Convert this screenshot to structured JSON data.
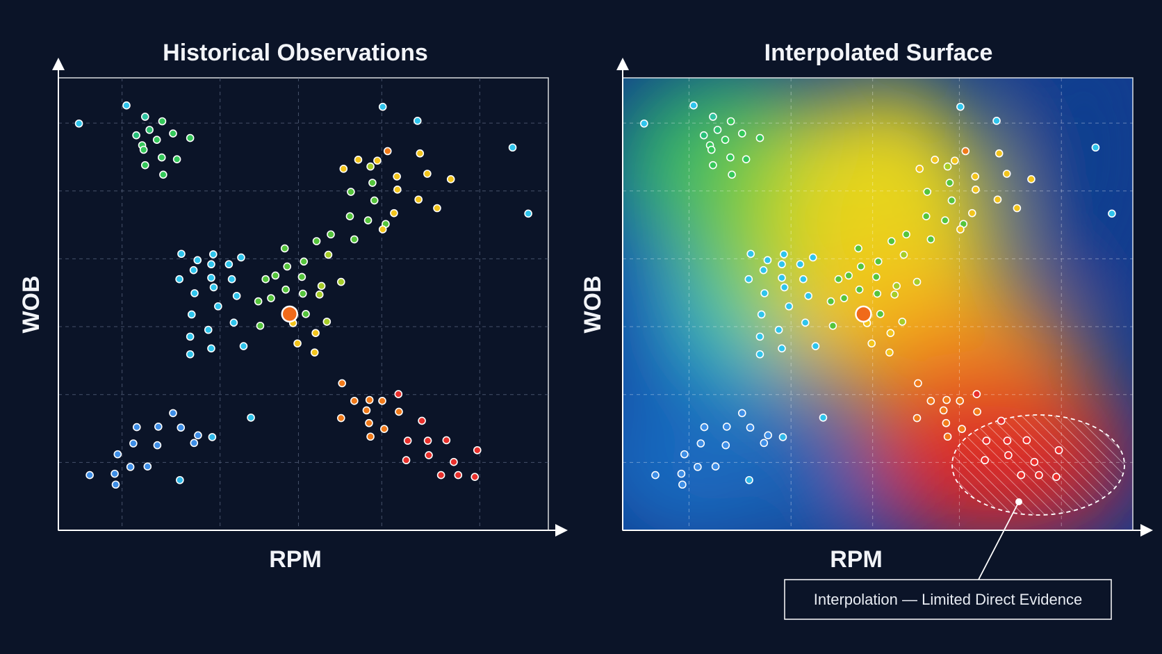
{
  "chart_data": [
    {
      "type": "scatter",
      "title": "Historical Observations",
      "xlabel": "RPM",
      "ylabel": "WOB",
      "xlim": [
        0,
        100
      ],
      "ylim": [
        0,
        100
      ],
      "grid": true,
      "highlight": {
        "x": 47.2,
        "y": 47.8,
        "color": "#f06a1a"
      },
      "points": [
        {
          "x": 4.2,
          "y": 89.9,
          "color": "#2fc4ec"
        },
        {
          "x": 13.9,
          "y": 93.9,
          "color": "#2fc4ec"
        },
        {
          "x": 17.7,
          "y": 91.4,
          "color": "#2fc3a0"
        },
        {
          "x": 15.9,
          "y": 87.3,
          "color": "#27c07a"
        },
        {
          "x": 18.6,
          "y": 88.5,
          "color": "#2fc070"
        },
        {
          "x": 21.2,
          "y": 90.4,
          "color": "#35c85a"
        },
        {
          "x": 17.1,
          "y": 85.1,
          "color": "#35c85a"
        },
        {
          "x": 20.1,
          "y": 86.3,
          "color": "#35c85a"
        },
        {
          "x": 23.4,
          "y": 87.7,
          "color": "#35c85a"
        },
        {
          "x": 26.9,
          "y": 86.7,
          "color": "#35c85a"
        },
        {
          "x": 17.4,
          "y": 84.1,
          "color": "#35c85a"
        },
        {
          "x": 21.1,
          "y": 82.4,
          "color": "#35c85a"
        },
        {
          "x": 24.2,
          "y": 82.0,
          "color": "#35c85a"
        },
        {
          "x": 17.7,
          "y": 80.7,
          "color": "#35c85a"
        },
        {
          "x": 21.4,
          "y": 78.6,
          "color": "#35c85a"
        },
        {
          "x": 66.2,
          "y": 93.6,
          "color": "#2fc4ec"
        },
        {
          "x": 73.3,
          "y": 90.5,
          "color": "#2fc4ec"
        },
        {
          "x": 92.7,
          "y": 84.6,
          "color": "#2fc4ec"
        },
        {
          "x": 95.9,
          "y": 70.0,
          "color": "#2fc4ec"
        },
        {
          "x": 67.2,
          "y": 83.8,
          "color": "#f07a1a"
        },
        {
          "x": 73.8,
          "y": 83.3,
          "color": "#f2c41c"
        },
        {
          "x": 65.1,
          "y": 81.7,
          "color": "#f2c41c"
        },
        {
          "x": 61.2,
          "y": 81.9,
          "color": "#f2c41c"
        },
        {
          "x": 58.2,
          "y": 79.9,
          "color": "#f2c41c"
        },
        {
          "x": 63.7,
          "y": 80.4,
          "color": "#a6cc28"
        },
        {
          "x": 75.3,
          "y": 78.8,
          "color": "#f2c41c"
        },
        {
          "x": 80.1,
          "y": 77.6,
          "color": "#f2c41c"
        },
        {
          "x": 69.1,
          "y": 78.2,
          "color": "#f2c41c"
        },
        {
          "x": 64.1,
          "y": 76.8,
          "color": "#55c43c"
        },
        {
          "x": 59.7,
          "y": 74.8,
          "color": "#55c43c"
        },
        {
          "x": 73.5,
          "y": 73.1,
          "color": "#f2c41c"
        },
        {
          "x": 69.2,
          "y": 75.3,
          "color": "#f2c41c"
        },
        {
          "x": 77.3,
          "y": 71.2,
          "color": "#f2c41c"
        },
        {
          "x": 64.5,
          "y": 72.9,
          "color": "#55c43c"
        },
        {
          "x": 68.5,
          "y": 70.1,
          "color": "#f2c41c"
        },
        {
          "x": 59.5,
          "y": 69.4,
          "color": "#55c43c"
        },
        {
          "x": 63.2,
          "y": 68.5,
          "color": "#55c43c"
        },
        {
          "x": 66.8,
          "y": 67.7,
          "color": "#55c43c"
        },
        {
          "x": 55.6,
          "y": 65.4,
          "color": "#55c43c"
        },
        {
          "x": 60.4,
          "y": 64.3,
          "color": "#55c43c"
        },
        {
          "x": 66.2,
          "y": 66.5,
          "color": "#f2c41c"
        },
        {
          "x": 52.7,
          "y": 63.9,
          "color": "#55c43c"
        },
        {
          "x": 46.2,
          "y": 62.3,
          "color": "#55c43c"
        },
        {
          "x": 55.1,
          "y": 60.9,
          "color": "#a6cc28"
        },
        {
          "x": 50.1,
          "y": 59.4,
          "color": "#55c43c"
        },
        {
          "x": 42.3,
          "y": 55.5,
          "color": "#55c43c"
        },
        {
          "x": 44.3,
          "y": 56.3,
          "color": "#55c43c"
        },
        {
          "x": 49.7,
          "y": 56.0,
          "color": "#55c43c"
        },
        {
          "x": 53.7,
          "y": 54.0,
          "color": "#a6cc28"
        },
        {
          "x": 57.7,
          "y": 54.9,
          "color": "#a6cc28"
        },
        {
          "x": 46.7,
          "y": 58.3,
          "color": "#55c43c"
        },
        {
          "x": 43.4,
          "y": 51.3,
          "color": "#55c43c"
        },
        {
          "x": 49.9,
          "y": 52.3,
          "color": "#55c43c"
        },
        {
          "x": 53.3,
          "y": 52.1,
          "color": "#a6cc28"
        },
        {
          "x": 46.4,
          "y": 53.2,
          "color": "#55c43c"
        },
        {
          "x": 40.8,
          "y": 50.6,
          "color": "#55c43c"
        },
        {
          "x": 47.9,
          "y": 45.8,
          "color": "#f2c41c"
        },
        {
          "x": 50.5,
          "y": 47.8,
          "color": "#55c43c"
        },
        {
          "x": 54.8,
          "y": 46.1,
          "color": "#a6cc28"
        },
        {
          "x": 41.2,
          "y": 45.2,
          "color": "#55c43c"
        },
        {
          "x": 48.8,
          "y": 41.3,
          "color": "#f2c41c"
        },
        {
          "x": 52.5,
          "y": 43.6,
          "color": "#f2c41c"
        },
        {
          "x": 52.3,
          "y": 39.3,
          "color": "#f2c41c"
        },
        {
          "x": 25.1,
          "y": 61.1,
          "color": "#2fc4ec"
        },
        {
          "x": 28.4,
          "y": 59.7,
          "color": "#2fc4ec"
        },
        {
          "x": 31.6,
          "y": 61.0,
          "color": "#2fc4ec"
        },
        {
          "x": 31.2,
          "y": 58.8,
          "color": "#2fc4ec"
        },
        {
          "x": 34.8,
          "y": 58.8,
          "color": "#2fc4ec"
        },
        {
          "x": 37.3,
          "y": 60.3,
          "color": "#2fc4ec"
        },
        {
          "x": 27.6,
          "y": 57.5,
          "color": "#2fc4ec"
        },
        {
          "x": 24.7,
          "y": 55.5,
          "color": "#2fc4ec"
        },
        {
          "x": 31.2,
          "y": 55.8,
          "color": "#2fc4ec"
        },
        {
          "x": 35.4,
          "y": 55.5,
          "color": "#2fc4ec"
        },
        {
          "x": 27.8,
          "y": 52.4,
          "color": "#2fc4ec"
        },
        {
          "x": 31.7,
          "y": 53.7,
          "color": "#2fc4ec"
        },
        {
          "x": 36.4,
          "y": 51.8,
          "color": "#2fc4ec"
        },
        {
          "x": 32.6,
          "y": 49.5,
          "color": "#2fc4ec"
        },
        {
          "x": 27.2,
          "y": 47.7,
          "color": "#2fc4ec"
        },
        {
          "x": 35.8,
          "y": 45.9,
          "color": "#2fc4ec"
        },
        {
          "x": 30.6,
          "y": 44.3,
          "color": "#2fc4ec"
        },
        {
          "x": 26.9,
          "y": 42.8,
          "color": "#2fc4ec"
        },
        {
          "x": 37.8,
          "y": 40.7,
          "color": "#2fc4ec"
        },
        {
          "x": 31.2,
          "y": 40.2,
          "color": "#2fc4ec"
        },
        {
          "x": 26.9,
          "y": 38.9,
          "color": "#2fc4ec"
        },
        {
          "x": 57.9,
          "y": 32.5,
          "color": "#f07a1a"
        },
        {
          "x": 60.4,
          "y": 28.6,
          "color": "#f07a1a"
        },
        {
          "x": 63.5,
          "y": 28.8,
          "color": "#f07a1a"
        },
        {
          "x": 66.1,
          "y": 28.6,
          "color": "#f07a1a"
        },
        {
          "x": 69.4,
          "y": 30.1,
          "color": "#e8302c"
        },
        {
          "x": 62.9,
          "y": 26.5,
          "color": "#f07a1a"
        },
        {
          "x": 69.5,
          "y": 26.2,
          "color": "#f07a1a"
        },
        {
          "x": 57.7,
          "y": 24.8,
          "color": "#f07a1a"
        },
        {
          "x": 63.4,
          "y": 23.7,
          "color": "#f07a1a"
        },
        {
          "x": 66.5,
          "y": 22.4,
          "color": "#f07a1a"
        },
        {
          "x": 74.2,
          "y": 24.2,
          "color": "#e8302c"
        },
        {
          "x": 63.7,
          "y": 20.7,
          "color": "#f07a1a"
        },
        {
          "x": 71.3,
          "y": 19.8,
          "color": "#e8302c"
        },
        {
          "x": 75.4,
          "y": 19.8,
          "color": "#e8302c"
        },
        {
          "x": 79.2,
          "y": 19.9,
          "color": "#e8302c"
        },
        {
          "x": 75.6,
          "y": 16.6,
          "color": "#e8302c"
        },
        {
          "x": 85.5,
          "y": 17.7,
          "color": "#e8302c"
        },
        {
          "x": 80.7,
          "y": 15.1,
          "color": "#e8302c"
        },
        {
          "x": 71.0,
          "y": 15.5,
          "color": "#e8302c"
        },
        {
          "x": 81.6,
          "y": 12.2,
          "color": "#e8302c"
        },
        {
          "x": 78.1,
          "y": 12.2,
          "color": "#e8302c"
        },
        {
          "x": 85.0,
          "y": 11.8,
          "color": "#e8302c"
        },
        {
          "x": 23.4,
          "y": 25.9,
          "color": "#3e8ee6"
        },
        {
          "x": 39.3,
          "y": 24.9,
          "color": "#2fc4ec"
        },
        {
          "x": 16.0,
          "y": 22.8,
          "color": "#3e8ee6"
        },
        {
          "x": 20.4,
          "y": 22.9,
          "color": "#3e8ee6"
        },
        {
          "x": 25.0,
          "y": 22.7,
          "color": "#3e8ee6"
        },
        {
          "x": 28.5,
          "y": 21.0,
          "color": "#3e8ee6"
        },
        {
          "x": 31.4,
          "y": 20.6,
          "color": "#2fb8e8"
        },
        {
          "x": 15.3,
          "y": 19.2,
          "color": "#3e8ee6"
        },
        {
          "x": 20.2,
          "y": 18.8,
          "color": "#3e8ee6"
        },
        {
          "x": 27.7,
          "y": 19.3,
          "color": "#3e8ee6"
        },
        {
          "x": 12.1,
          "y": 16.8,
          "color": "#3e8ee6"
        },
        {
          "x": 14.7,
          "y": 14.0,
          "color": "#3e8ee6"
        },
        {
          "x": 18.2,
          "y": 14.1,
          "color": "#3e8ee6"
        },
        {
          "x": 11.5,
          "y": 12.5,
          "color": "#3e8ee6"
        },
        {
          "x": 6.4,
          "y": 12.2,
          "color": "#3e8ee6"
        },
        {
          "x": 11.7,
          "y": 10.1,
          "color": "#3e8ee6"
        },
        {
          "x": 24.8,
          "y": 11.1,
          "color": "#2fb8e8"
        }
      ]
    },
    {
      "type": "heatmap",
      "title": "Interpolated Surface",
      "xlabel": "RPM",
      "ylabel": "WOB",
      "xlim": [
        0,
        100
      ],
      "ylim": [
        0,
        100
      ],
      "grid": true,
      "colormap": [
        "#0d3a8c",
        "#1e78c8",
        "#2fc4ec",
        "#35c85a",
        "#f2d21c",
        "#f07a1a",
        "#d8232a"
      ],
      "overlay_points": "same observations as Historical Observations",
      "uncertainty_region": {
        "cx": 81.5,
        "cy": 14.5,
        "rx": 17,
        "ry": 11,
        "hatched": true
      },
      "annotation": "Interpolation — Limited Direct Evidence"
    }
  ]
}
